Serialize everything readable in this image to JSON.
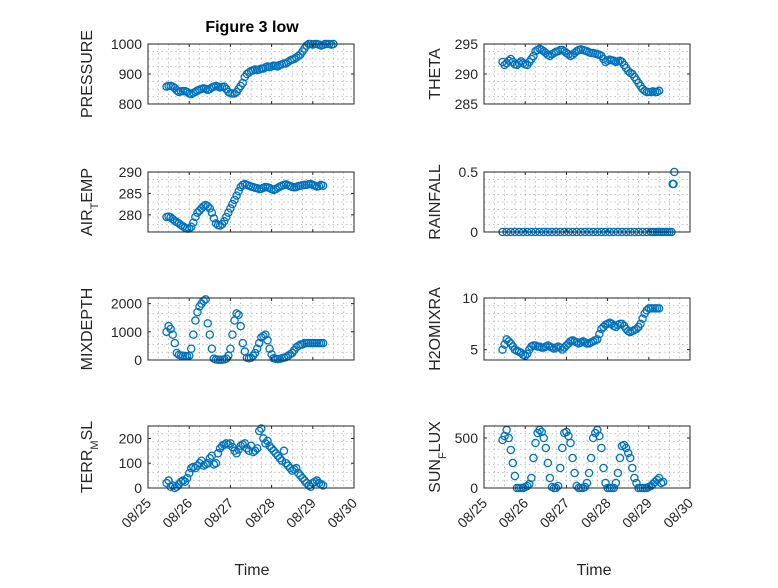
{
  "figure": {
    "title": "Figure 3 low",
    "marker_color": "#0072bd",
    "x_axis": {
      "label": "Time",
      "range": [
        0,
        5
      ],
      "ticks": [
        0,
        1,
        2,
        3,
        4,
        5
      ],
      "tick_labels": [
        "08/25",
        "08/26",
        "08/27",
        "08/28",
        "08/29",
        "08/30"
      ]
    }
  },
  "chart_data": [
    {
      "type": "scatter",
      "title": "Figure 3 low",
      "ylabel": "PRESSURE",
      "ylabel_sub": "",
      "xlabel": "",
      "ylim": [
        800,
        1000
      ],
      "yticks": [
        800,
        900,
        1000
      ],
      "ytick_labels": [
        "800",
        "900",
        "1000"
      ],
      "grid": true,
      "x_tick_labels_shown": false,
      "x": [
        0.45,
        0.5,
        0.55,
        0.6,
        0.65,
        0.7,
        0.75,
        0.8,
        0.85,
        0.9,
        0.95,
        1.0,
        1.05,
        1.1,
        1.15,
        1.2,
        1.25,
        1.3,
        1.35,
        1.4,
        1.45,
        1.5,
        1.55,
        1.6,
        1.65,
        1.7,
        1.75,
        1.8,
        1.85,
        1.9,
        1.95,
        2.0,
        2.05,
        2.1,
        2.15,
        2.2,
        2.25,
        2.3,
        2.35,
        2.4,
        2.45,
        2.5,
        2.55,
        2.6,
        2.65,
        2.7,
        2.75,
        2.8,
        2.85,
        2.9,
        2.95,
        3.0,
        3.05,
        3.1,
        3.15,
        3.2,
        3.25,
        3.3,
        3.35,
        3.4,
        3.45,
        3.5,
        3.55,
        3.6,
        3.65,
        3.7,
        3.75,
        3.8,
        3.85,
        3.9,
        3.95,
        4.0,
        4.05,
        4.1,
        4.15,
        4.2,
        4.25,
        4.3,
        4.35,
        4.4,
        4.45,
        4.5
      ],
      "y": [
        858,
        860,
        860,
        858,
        853,
        845,
        840,
        842,
        843,
        843,
        840,
        835,
        833,
        837,
        840,
        845,
        848,
        850,
        852,
        850,
        847,
        850,
        855,
        858,
        860,
        858,
        855,
        857,
        858,
        850,
        840,
        836,
        835,
        835,
        840,
        850,
        860,
        870,
        890,
        900,
        905,
        910,
        912,
        915,
        913,
        915,
        918,
        918,
        922,
        925,
        923,
        925,
        928,
        927,
        925,
        930,
        932,
        935,
        935,
        940,
        945,
        948,
        950,
        955,
        960,
        965,
        975,
        985,
        995,
        1000,
        1000,
        998,
        1000,
        1000,
        998,
        995,
        997,
        1000,
        1000,
        1000,
        998,
        1000
      ]
    },
    {
      "type": "scatter",
      "ylabel": "THETA",
      "ylabel_sub": "",
      "xlabel": "",
      "ylim": [
        285,
        295
      ],
      "yticks": [
        285,
        290,
        295
      ],
      "ytick_labels": [
        "285",
        "290",
        "295"
      ],
      "grid": true,
      "x_tick_labels_shown": false,
      "x": [
        0.45,
        0.5,
        0.55,
        0.6,
        0.65,
        0.7,
        0.75,
        0.8,
        0.85,
        0.9,
        0.95,
        1.0,
        1.05,
        1.1,
        1.15,
        1.2,
        1.25,
        1.3,
        1.35,
        1.4,
        1.45,
        1.5,
        1.55,
        1.6,
        1.65,
        1.7,
        1.75,
        1.8,
        1.85,
        1.9,
        1.95,
        2.0,
        2.05,
        2.1,
        2.15,
        2.2,
        2.25,
        2.3,
        2.35,
        2.4,
        2.45,
        2.5,
        2.55,
        2.6,
        2.65,
        2.7,
        2.75,
        2.8,
        2.85,
        2.9,
        2.95,
        3.0,
        3.05,
        3.1,
        3.15,
        3.2,
        3.25,
        3.3,
        3.35,
        3.4,
        3.45,
        3.5,
        3.55,
        3.6,
        3.65,
        3.7,
        3.75,
        3.8,
        3.85,
        3.9,
        3.95,
        4.0,
        4.05,
        4.1,
        4.15,
        4.2,
        4.25
      ],
      "y": [
        292.0,
        291.5,
        291.8,
        292.2,
        292.5,
        292.0,
        291.6,
        291.5,
        291.8,
        292.1,
        291.8,
        291.6,
        291.5,
        292.0,
        292.5,
        293.0,
        293.8,
        294.0,
        294.2,
        294.0,
        293.8,
        293.5,
        293.2,
        293.0,
        293.3,
        293.5,
        293.7,
        293.8,
        294.0,
        294.0,
        293.8,
        293.5,
        293.3,
        293.0,
        293.2,
        293.5,
        293.8,
        294.0,
        294.1,
        294.0,
        293.9,
        293.8,
        293.6,
        293.5,
        293.5,
        293.4,
        293.3,
        293.2,
        293.0,
        292.5,
        292.0,
        292.2,
        292.4,
        292.3,
        292.2,
        292.0,
        292.1,
        292.2,
        292.0,
        291.5,
        291.0,
        290.5,
        290.2,
        290.0,
        289.5,
        289.0,
        288.5,
        288.0,
        287.5,
        287.2,
        287.0,
        287.0,
        287.0,
        287.1,
        287.0,
        287.0,
        287.2
      ]
    },
    {
      "type": "scatter",
      "ylabel": "AIR",
      "ylabel_sub": "T",
      "ylabel_tail": "EMP",
      "xlabel": "",
      "ylim": [
        276,
        290
      ],
      "yticks": [
        280,
        285,
        290
      ],
      "ytick_labels": [
        "280",
        "285",
        "290"
      ],
      "grid": true,
      "x_tick_labels_shown": false,
      "x": [
        0.45,
        0.5,
        0.55,
        0.6,
        0.65,
        0.7,
        0.75,
        0.8,
        0.85,
        0.9,
        0.95,
        1.0,
        1.05,
        1.1,
        1.15,
        1.2,
        1.25,
        1.3,
        1.35,
        1.4,
        1.45,
        1.5,
        1.55,
        1.6,
        1.65,
        1.7,
        1.75,
        1.8,
        1.85,
        1.9,
        1.95,
        2.0,
        2.05,
        2.1,
        2.15,
        2.2,
        2.25,
        2.3,
        2.35,
        2.4,
        2.45,
        2.5,
        2.55,
        2.6,
        2.65,
        2.7,
        2.75,
        2.8,
        2.85,
        2.9,
        2.95,
        3.0,
        3.05,
        3.1,
        3.15,
        3.2,
        3.25,
        3.3,
        3.35,
        3.4,
        3.45,
        3.5,
        3.55,
        3.6,
        3.65,
        3.7,
        3.75,
        3.8,
        3.85,
        3.9,
        3.95,
        4.0,
        4.05,
        4.1,
        4.15,
        4.2,
        4.25
      ],
      "y": [
        279.5,
        279.6,
        279.4,
        279.0,
        278.6,
        278.3,
        278.0,
        277.6,
        277.3,
        277.0,
        276.8,
        276.8,
        277.2,
        278.2,
        279.5,
        280.5,
        281.0,
        281.5,
        282.0,
        282.3,
        282.0,
        281.5,
        280.5,
        279.2,
        278.0,
        277.6,
        277.5,
        277.8,
        278.5,
        279.5,
        280.5,
        281.5,
        282.5,
        283.5,
        284.5,
        285.5,
        286.5,
        287.0,
        287.2,
        287.0,
        286.8,
        286.6,
        286.5,
        286.3,
        286.2,
        286.0,
        286.1,
        286.3,
        286.5,
        286.4,
        286.3,
        286.0,
        285.8,
        286.0,
        286.3,
        286.6,
        286.8,
        287.0,
        287.1,
        286.9,
        286.7,
        286.5,
        286.4,
        286.5,
        286.7,
        286.8,
        286.9,
        287.0,
        287.0,
        287.1,
        287.2,
        287.0,
        286.8,
        286.6,
        286.7,
        287.0,
        286.8
      ]
    },
    {
      "type": "scatter",
      "ylabel": "RAINFALL",
      "ylabel_sub": "",
      "xlabel": "",
      "ylim": [
        0,
        0.5
      ],
      "yticks": [
        0,
        0.5
      ],
      "ytick_labels": [
        "0",
        "0.5"
      ],
      "grid": true,
      "x_tick_labels_shown": false,
      "x": [
        0.45,
        0.55,
        0.65,
        0.75,
        0.85,
        0.95,
        1.05,
        1.15,
        1.25,
        1.35,
        1.45,
        1.55,
        1.65,
        1.75,
        1.85,
        1.95,
        2.05,
        2.15,
        2.25,
        2.35,
        2.45,
        2.55,
        2.65,
        2.75,
        2.85,
        2.95,
        3.05,
        3.15,
        3.25,
        3.35,
        3.45,
        3.55,
        3.65,
        3.75,
        3.85,
        3.95,
        4.05,
        4.1,
        4.15,
        4.2,
        4.25,
        4.3,
        4.35,
        4.4,
        4.45,
        4.5,
        4.55,
        4.58,
        4.6,
        4.62
      ],
      "y": [
        0,
        0,
        0,
        0,
        0,
        0,
        0,
        0,
        0,
        0,
        0,
        0,
        0,
        0,
        0,
        0,
        0,
        0,
        0,
        0,
        0,
        0,
        0,
        0,
        0,
        0,
        0,
        0,
        0,
        0,
        0,
        0,
        0,
        0,
        0,
        0,
        0,
        0,
        0,
        0,
        0,
        0,
        0,
        0,
        0,
        0,
        0,
        0.4,
        0.4,
        0.5
      ]
    },
    {
      "type": "scatter",
      "ylabel": "MIXDEPTH",
      "ylabel_sub": "",
      "xlabel": "",
      "ylim": [
        0,
        2200
      ],
      "yticks": [
        0,
        1000,
        2000
      ],
      "ytick_labels": [
        "0",
        "1000",
        "2000"
      ],
      "grid": true,
      "x_tick_labels_shown": false,
      "x": [
        0.45,
        0.5,
        0.55,
        0.6,
        0.65,
        0.7,
        0.75,
        0.8,
        0.85,
        0.9,
        0.95,
        1.0,
        1.05,
        1.1,
        1.15,
        1.2,
        1.25,
        1.3,
        1.35,
        1.4,
        1.45,
        1.5,
        1.55,
        1.6,
        1.65,
        1.7,
        1.75,
        1.8,
        1.85,
        1.9,
        1.95,
        2.0,
        2.05,
        2.1,
        2.15,
        2.2,
        2.25,
        2.3,
        2.35,
        2.4,
        2.45,
        2.5,
        2.55,
        2.6,
        2.65,
        2.7,
        2.75,
        2.8,
        2.85,
        2.9,
        2.95,
        3.0,
        3.05,
        3.1,
        3.15,
        3.2,
        3.25,
        3.3,
        3.35,
        3.4,
        3.45,
        3.5,
        3.55,
        3.6,
        3.65,
        3.7,
        3.75,
        3.8,
        3.85,
        3.9,
        3.95,
        4.0,
        4.05,
        4.1,
        4.15,
        4.2,
        4.25
      ],
      "y": [
        1000,
        1200,
        1100,
        900,
        600,
        250,
        180,
        160,
        150,
        140,
        130,
        150,
        400,
        900,
        1400,
        1700,
        1900,
        2000,
        2100,
        2150,
        1300,
        900,
        400,
        50,
        20,
        10,
        10,
        10,
        20,
        50,
        150,
        400,
        900,
        1400,
        1650,
        1600,
        1200,
        600,
        300,
        80,
        60,
        80,
        150,
        250,
        400,
        600,
        800,
        850,
        900,
        700,
        400,
        200,
        60,
        40,
        30,
        40,
        60,
        80,
        100,
        150,
        200,
        250,
        350,
        450,
        500,
        550,
        550,
        600,
        600,
        600,
        600,
        600,
        600,
        600,
        600,
        600,
        600
      ]
    },
    {
      "type": "scatter",
      "ylabel": "H2OMIXRA",
      "ylabel_sub": "",
      "xlabel": "",
      "ylim": [
        4,
        10
      ],
      "yticks": [
        5,
        10
      ],
      "ytick_labels": [
        "5",
        "10"
      ],
      "grid": true,
      "x_tick_labels_shown": false,
      "x": [
        0.45,
        0.5,
        0.55,
        0.6,
        0.65,
        0.7,
        0.75,
        0.8,
        0.85,
        0.9,
        0.95,
        1.0,
        1.05,
        1.1,
        1.15,
        1.2,
        1.25,
        1.3,
        1.35,
        1.4,
        1.45,
        1.5,
        1.55,
        1.6,
        1.65,
        1.7,
        1.75,
        1.8,
        1.85,
        1.9,
        1.95,
        2.0,
        2.05,
        2.1,
        2.15,
        2.2,
        2.25,
        2.3,
        2.35,
        2.4,
        2.45,
        2.5,
        2.55,
        2.6,
        2.65,
        2.7,
        2.75,
        2.8,
        2.85,
        2.9,
        2.95,
        3.0,
        3.05,
        3.1,
        3.15,
        3.2,
        3.25,
        3.3,
        3.35,
        3.4,
        3.45,
        3.5,
        3.55,
        3.6,
        3.65,
        3.7,
        3.75,
        3.8,
        3.85,
        3.9,
        3.95,
        4.0,
        4.05,
        4.1,
        4.15,
        4.2,
        4.25
      ],
      "y": [
        5.0,
        5.5,
        6.0,
        5.8,
        5.6,
        5.3,
        5.0,
        4.9,
        4.8,
        4.7,
        4.5,
        4.4,
        4.6,
        5.0,
        5.3,
        5.4,
        5.4,
        5.3,
        5.3,
        5.2,
        5.2,
        5.3,
        5.4,
        5.3,
        5.2,
        5.1,
        5.2,
        5.3,
        5.2,
        5.0,
        5.2,
        5.4,
        5.6,
        5.8,
        5.9,
        5.8,
        5.7,
        5.6,
        5.7,
        5.8,
        5.7,
        5.6,
        5.6,
        5.7,
        5.8,
        5.9,
        6.0,
        6.5,
        7.0,
        7.2,
        7.4,
        7.5,
        7.6,
        7.5,
        7.3,
        7.2,
        7.4,
        7.5,
        7.5,
        7.3,
        7.0,
        6.8,
        6.7,
        6.8,
        6.9,
        7.0,
        7.2,
        7.5,
        8.0,
        8.5,
        8.8,
        9.0,
        9.0,
        9.0,
        9.0,
        9.0,
        9.0
      ]
    },
    {
      "type": "scatter",
      "ylabel": "TERR",
      "ylabel_sub": "M",
      "ylabel_tail": "SL",
      "xlabel": "Time",
      "ylim": [
        0,
        250
      ],
      "yticks": [
        0,
        100,
        200
      ],
      "ytick_labels": [
        "0",
        "100",
        "200"
      ],
      "grid": true,
      "x_tick_labels_shown": true,
      "x": [
        0.45,
        0.5,
        0.55,
        0.6,
        0.65,
        0.7,
        0.75,
        0.8,
        0.85,
        0.9,
        0.95,
        1.0,
        1.05,
        1.1,
        1.15,
        1.2,
        1.25,
        1.3,
        1.35,
        1.4,
        1.45,
        1.5,
        1.55,
        1.6,
        1.65,
        1.7,
        1.75,
        1.8,
        1.85,
        1.9,
        1.95,
        2.0,
        2.05,
        2.1,
        2.15,
        2.2,
        2.25,
        2.3,
        2.35,
        2.4,
        2.45,
        2.5,
        2.55,
        2.6,
        2.65,
        2.7,
        2.75,
        2.8,
        2.85,
        2.9,
        2.95,
        3.0,
        3.05,
        3.1,
        3.15,
        3.2,
        3.25,
        3.3,
        3.35,
        3.4,
        3.45,
        3.5,
        3.55,
        3.6,
        3.65,
        3.7,
        3.75,
        3.8,
        3.85,
        3.9,
        3.95,
        4.0,
        4.05,
        4.1,
        4.15,
        4.2,
        4.25
      ],
      "y": [
        20,
        30,
        5,
        10,
        0,
        5,
        15,
        25,
        30,
        25,
        40,
        60,
        80,
        85,
        80,
        90,
        100,
        110,
        90,
        95,
        100,
        120,
        130,
        95,
        100,
        140,
        160,
        170,
        175,
        180,
        175,
        180,
        165,
        150,
        140,
        155,
        170,
        175,
        180,
        160,
        150,
        170,
        145,
        150,
        160,
        230,
        240,
        200,
        180,
        190,
        170,
        160,
        150,
        140,
        130,
        120,
        110,
        150,
        100,
        90,
        80,
        70,
        75,
        80,
        60,
        50,
        40,
        30,
        20,
        10,
        5,
        20,
        25,
        30,
        20,
        15,
        10
      ]
    },
    {
      "type": "scatter",
      "ylabel": "SUN",
      "ylabel_sub": "F",
      "ylabel_tail": "LUX",
      "xlabel": "Time",
      "ylim": [
        0,
        620
      ],
      "yticks": [
        0,
        500
      ],
      "ytick_labels": [
        "0",
        "500"
      ],
      "grid": true,
      "x_tick_labels_shown": true,
      "x": [
        0.45,
        0.5,
        0.55,
        0.6,
        0.65,
        0.7,
        0.75,
        0.8,
        0.85,
        0.9,
        0.95,
        1.0,
        1.05,
        1.1,
        1.15,
        1.2,
        1.25,
        1.3,
        1.35,
        1.4,
        1.45,
        1.5,
        1.55,
        1.6,
        1.65,
        1.7,
        1.75,
        1.8,
        1.85,
        1.9,
        1.95,
        2.0,
        2.05,
        2.1,
        2.15,
        2.2,
        2.25,
        2.3,
        2.35,
        2.4,
        2.45,
        2.5,
        2.55,
        2.6,
        2.65,
        2.7,
        2.75,
        2.8,
        2.85,
        2.9,
        2.95,
        3.0,
        3.05,
        3.1,
        3.15,
        3.2,
        3.25,
        3.3,
        3.35,
        3.4,
        3.45,
        3.5,
        3.55,
        3.6,
        3.65,
        3.7,
        3.75,
        3.8,
        3.85,
        3.9,
        3.95,
        4.0,
        4.05,
        4.1,
        4.15,
        4.2,
        4.25,
        4.3,
        4.35
      ],
      "y": [
        480,
        520,
        580,
        500,
        380,
        250,
        120,
        0,
        0,
        0,
        0,
        10,
        20,
        40,
        100,
        300,
        450,
        550,
        580,
        560,
        500,
        400,
        250,
        100,
        10,
        0,
        0,
        20,
        200,
        400,
        550,
        560,
        520,
        450,
        300,
        150,
        20,
        0,
        0,
        0,
        10,
        50,
        150,
        300,
        500,
        550,
        580,
        520,
        400,
        200,
        50,
        0,
        0,
        0,
        0,
        50,
        150,
        300,
        420,
        430,
        400,
        350,
        300,
        200,
        100,
        50,
        0,
        0,
        0,
        0,
        0,
        10,
        20,
        40,
        60,
        80,
        100,
        50,
        60
      ]
    }
  ]
}
